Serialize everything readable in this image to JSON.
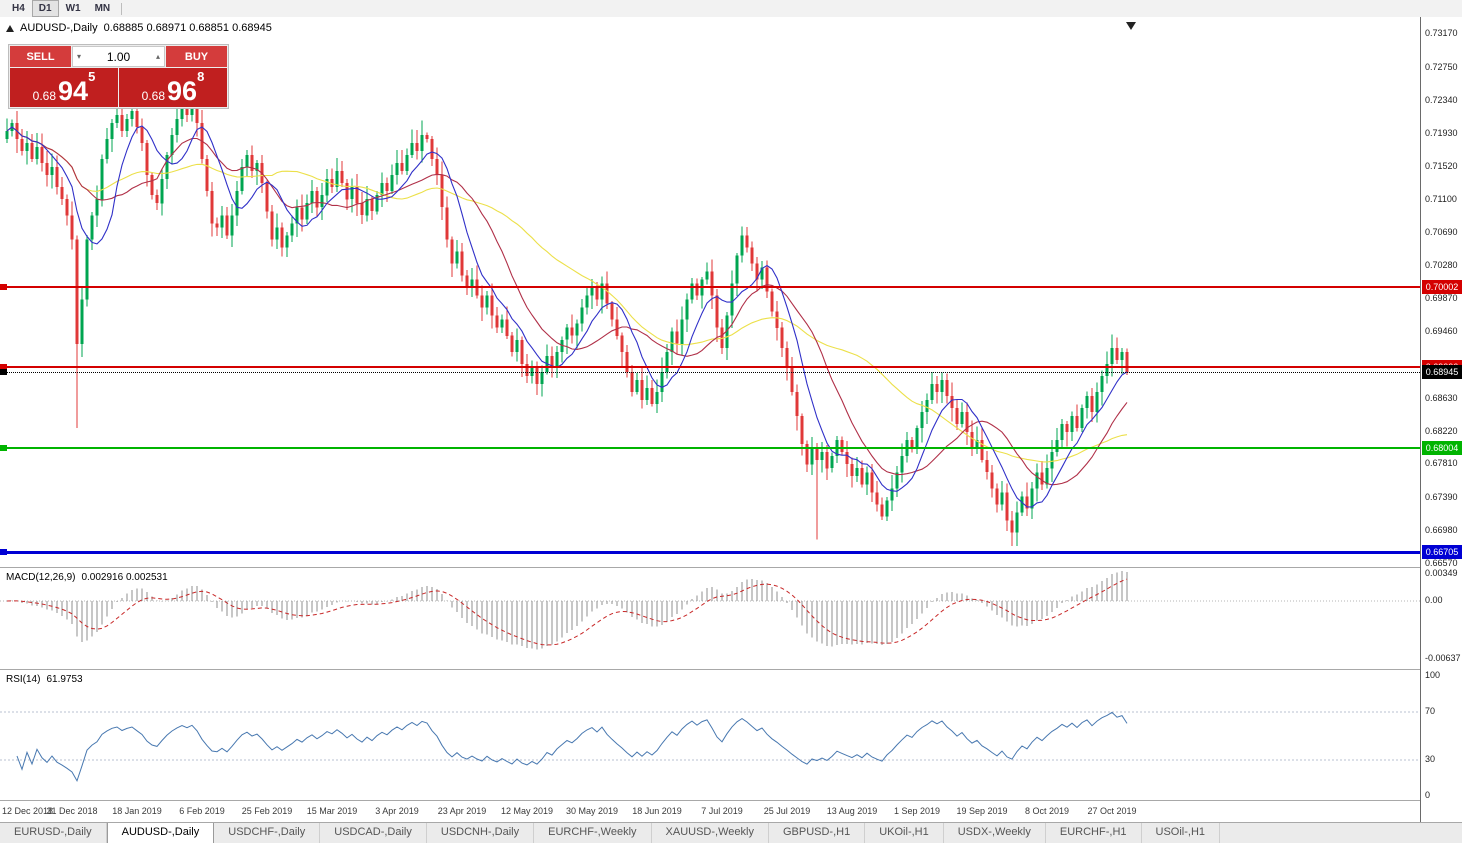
{
  "toolbar": {
    "timeframes": [
      "H4",
      "D1",
      "W1",
      "MN"
    ],
    "active": "D1"
  },
  "header": {
    "symbol": "AUDUSD-,Daily",
    "ohlc": "0.68885 0.68971 0.68851 0.68945"
  },
  "trade_panel": {
    "sell_label": "SELL",
    "buy_label": "BUY",
    "volume": "1.00",
    "sell": {
      "prefix": "0.68",
      "big": "94",
      "sup": "5"
    },
    "buy": {
      "prefix": "0.68",
      "big": "96",
      "sup": "8"
    }
  },
  "price_axis": {
    "ticks": [
      "0.73170",
      "0.72750",
      "0.72340",
      "0.71930",
      "0.71520",
      "0.71100",
      "0.70690",
      "0.70280",
      "0.69870",
      "0.69460",
      "0.69050",
      "0.68630",
      "0.68220",
      "0.67810",
      "0.67390",
      "0.66980",
      "0.66570"
    ]
  },
  "hlines": [
    {
      "price": 0.70002,
      "label": "0.70002",
      "color": "#d40000",
      "thickness": 2,
      "style": "solid"
    },
    {
      "price": 0.69006,
      "label": "0.69006",
      "color": "#d40000",
      "thickness": 2,
      "style": "solid"
    },
    {
      "price": 0.68945,
      "label": "0.68945",
      "color": "#000000",
      "thickness": 1,
      "style": "dotted"
    },
    {
      "price": 0.68004,
      "label": "0.68004",
      "color": "#00b400",
      "thickness": 2,
      "style": "solid"
    },
    {
      "price": 0.66705,
      "label": "0.66705",
      "color": "#0000d4",
      "thickness": 3,
      "style": "solid"
    }
  ],
  "macd": {
    "name": "MACD(12,26,9)",
    "values": "0.002916 0.002531",
    "axis": [
      "0.00349",
      "0.00",
      "-0.00637"
    ],
    "fast": 12,
    "slow": 26,
    "signal_period": 9,
    "hist_color": "#8f8f8f",
    "signal_color": "#c82828"
  },
  "rsi": {
    "name": "RSI(14)",
    "value": "61.9753",
    "axis": [
      "100",
      "70",
      "30",
      "0"
    ],
    "period": 14,
    "levels": [
      70,
      30
    ],
    "line_color": "#4878b0"
  },
  "tabs": {
    "items": [
      "EURUSD-,Daily",
      "AUDUSD-,Daily",
      "USDCHF-,Daily",
      "USDCAD-,Daily",
      "USDCNH-,Daily",
      "EURCHF-,Weekly",
      "XAUUSD-,Weekly",
      "GBPUSD-,H1",
      "UKOil-,H1",
      "USDX-,Weekly",
      "EURCHF-,H1",
      "USOil-,H1"
    ],
    "active_index": 1
  },
  "chart_data": {
    "type": "candlestick",
    "title": "AUDUSD Daily",
    "ylim": [
      0.6657,
      0.7317
    ],
    "price_top": 0.7317,
    "price_bottom": 0.6657,
    "first_open": 0.7185,
    "up_color": "#00a550",
    "down_color": "#e03838",
    "x_dates": [
      "12 Dec 2018",
      "31 Dec 2018",
      "18 Jan 2019",
      "6 Feb 2019",
      "25 Feb 2019",
      "15 Mar 2019",
      "3 Apr 2019",
      "23 Apr 2019",
      "12 May 2019",
      "30 May 2019",
      "18 Jun 2019",
      "7 Jul 2019",
      "25 Jul 2019",
      "13 Aug 2019",
      "1 Sep 2019",
      "19 Sep 2019",
      "8 Oct 2019",
      "27 Oct 2019"
    ],
    "closes": [
      0.7195,
      0.7205,
      0.7185,
      0.717,
      0.718,
      0.716,
      0.7175,
      0.7155,
      0.714,
      0.715,
      0.7125,
      0.711,
      0.709,
      0.706,
      0.693,
      0.6985,
      0.706,
      0.709,
      0.711,
      0.716,
      0.7185,
      0.7205,
      0.7215,
      0.7195,
      0.721,
      0.722,
      0.72,
      0.718,
      0.714,
      0.7115,
      0.7105,
      0.7135,
      0.7165,
      0.719,
      0.721,
      0.7225,
      0.7215,
      0.723,
      0.7205,
      0.716,
      0.712,
      0.708,
      0.7075,
      0.709,
      0.7065,
      0.709,
      0.712,
      0.715,
      0.7165,
      0.7145,
      0.7155,
      0.713,
      0.7095,
      0.706,
      0.7075,
      0.705,
      0.7065,
      0.708,
      0.71,
      0.7085,
      0.7105,
      0.712,
      0.71,
      0.7115,
      0.7135,
      0.7125,
      0.7145,
      0.713,
      0.711,
      0.7125,
      0.7105,
      0.709,
      0.711,
      0.7095,
      0.7115,
      0.713,
      0.712,
      0.714,
      0.7155,
      0.7145,
      0.7165,
      0.718,
      0.717,
      0.719,
      0.7185,
      0.716,
      0.714,
      0.71,
      0.706,
      0.703,
      0.7045,
      0.7015,
      0.7,
      0.701,
      0.699,
      0.6975,
      0.699,
      0.6965,
      0.695,
      0.696,
      0.694,
      0.692,
      0.6935,
      0.6905,
      0.689,
      0.69,
      0.688,
      0.6895,
      0.6915,
      0.69,
      0.692,
      0.6935,
      0.695,
      0.694,
      0.6955,
      0.6975,
      0.699,
      0.7,
      0.6985,
      0.7005,
      0.698,
      0.696,
      0.694,
      0.692,
      0.6895,
      0.687,
      0.6885,
      0.686,
      0.6875,
      0.6855,
      0.687,
      0.6895,
      0.692,
      0.6945,
      0.693,
      0.696,
      0.6985,
      0.7005,
      0.699,
      0.701,
      0.702,
      0.699,
      0.695,
      0.6925,
      0.6965,
      0.7005,
      0.704,
      0.7065,
      0.705,
      0.703,
      0.701,
      0.7025,
      0.6995,
      0.697,
      0.695,
      0.6925,
      0.69,
      0.687,
      0.684,
      0.6805,
      0.678,
      0.68,
      0.6785,
      0.6795,
      0.6775,
      0.679,
      0.681,
      0.6795,
      0.678,
      0.6765,
      0.6775,
      0.6755,
      0.677,
      0.6745,
      0.673,
      0.6715,
      0.6735,
      0.675,
      0.677,
      0.679,
      0.681,
      0.68,
      0.6825,
      0.6845,
      0.686,
      0.688,
      0.687,
      0.6885,
      0.6865,
      0.685,
      0.683,
      0.6845,
      0.682,
      0.68,
      0.681,
      0.6785,
      0.677,
      0.675,
      0.673,
      0.6745,
      0.671,
      0.6695,
      0.672,
      0.674,
      0.6725,
      0.675,
      0.677,
      0.6755,
      0.6775,
      0.6795,
      0.681,
      0.683,
      0.682,
      0.684,
      0.6825,
      0.685,
      0.6865,
      0.6845,
      0.687,
      0.689,
      0.6905,
      0.6925,
      0.691,
      0.692,
      0.68945
    ],
    "special_lows": {
      "14": 0.6825,
      "162": 0.6686,
      "201": 0.6678
    },
    "moving_averages": [
      {
        "name": "fast-ma",
        "period": 8,
        "color": "#3030c8"
      },
      {
        "name": "mid-ma",
        "period": 17,
        "color": "#b03048"
      },
      {
        "name": "slow-ma",
        "period": 40,
        "color": "#ece04a"
      }
    ]
  }
}
